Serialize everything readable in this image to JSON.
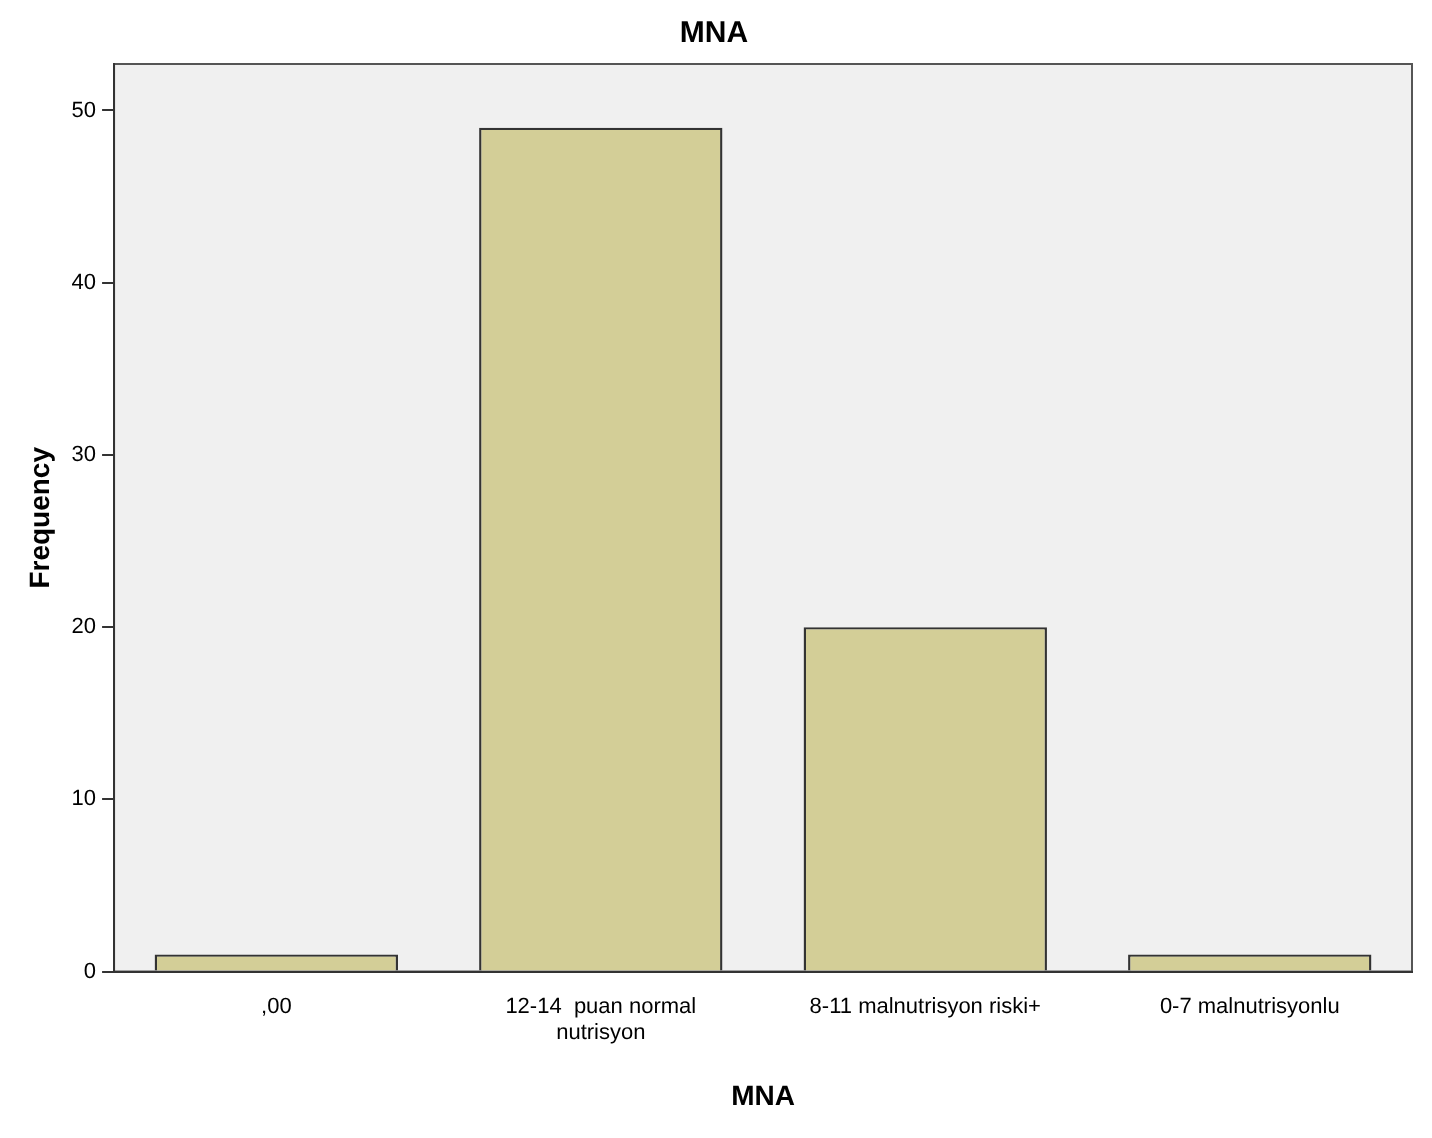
{
  "chart_data": {
    "type": "bar",
    "title": "MNA",
    "xlabel": "MNA",
    "ylabel": "Frequency",
    "categories": [
      ",00",
      "12-14  puan normal\nnutrisyon",
      "8-11 malnutrisyon riski+",
      "0-7 malnutrisyonlu"
    ],
    "values": [
      1,
      49,
      20,
      1
    ],
    "color": "#d3ce97",
    "ylim": [
      0,
      52.7
    ],
    "yticks": [
      0,
      10,
      20,
      30,
      40,
      50
    ],
    "grid": false,
    "legend": false
  }
}
